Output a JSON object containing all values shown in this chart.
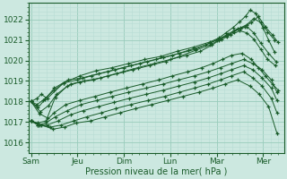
{
  "title": "",
  "xlabel": "Pression niveau de la mer( hPa )",
  "bg_color": "#cce8e0",
  "plot_bg_color": "#cce8e0",
  "grid_major_color": "#99ccbb",
  "grid_minor_color": "#b8ddd4",
  "line_color": "#1a5c2a",
  "ylim": [
    1015.5,
    1022.8
  ],
  "yticks": [
    1016,
    1017,
    1018,
    1019,
    1020,
    1021,
    1022
  ],
  "xtick_labels": [
    "Sam",
    "Jeu",
    "Dim",
    "Lun",
    "Mar",
    "Mer"
  ],
  "xtick_positions": [
    0,
    1,
    2,
    3,
    4,
    5
  ],
  "xlim": [
    -0.05,
    5.45
  ],
  "series": [
    {
      "x": [
        0.0,
        0.13,
        0.22,
        0.35,
        0.7,
        1.05,
        1.4,
        1.75,
        2.1,
        2.45,
        2.8,
        3.15,
        3.5,
        3.85,
        4.05,
        4.2,
        4.35,
        4.5,
        4.62,
        4.72,
        4.85,
        5.0,
        5.12,
        5.25
      ],
      "y": [
        1018.0,
        1018.15,
        1018.35,
        1018.15,
        1018.9,
        1019.25,
        1019.5,
        1019.65,
        1019.85,
        1020.05,
        1020.2,
        1020.45,
        1020.65,
        1020.9,
        1021.1,
        1021.35,
        1021.6,
        1021.9,
        1022.15,
        1022.45,
        1022.3,
        1021.6,
        1021.0,
        1020.4
      ]
    },
    {
      "x": [
        0.0,
        0.13,
        0.25,
        0.5,
        0.7,
        1.0,
        1.3,
        1.65,
        2.0,
        2.35,
        2.7,
        3.05,
        3.4,
        3.75,
        4.0,
        4.2,
        4.38,
        4.52,
        4.65,
        4.8,
        4.95,
        5.1,
        5.25
      ],
      "y": [
        1018.0,
        1017.85,
        1018.05,
        1018.55,
        1018.9,
        1019.05,
        1019.25,
        1019.45,
        1019.65,
        1019.85,
        1020.05,
        1020.25,
        1020.5,
        1020.75,
        1021.0,
        1021.2,
        1021.4,
        1021.6,
        1021.75,
        1022.05,
        1021.85,
        1021.4,
        1021.0
      ]
    },
    {
      "x": [
        0.0,
        0.15,
        0.3,
        0.5,
        0.8,
        1.1,
        1.45,
        1.8,
        2.15,
        2.5,
        2.85,
        3.2,
        3.55,
        3.85,
        4.05,
        4.25,
        4.45,
        4.6,
        4.75,
        4.9,
        5.05,
        5.2,
        5.32
      ],
      "y": [
        1018.0,
        1017.7,
        1018.1,
        1018.65,
        1019.05,
        1019.15,
        1019.35,
        1019.55,
        1019.75,
        1019.95,
        1020.15,
        1020.35,
        1020.55,
        1020.85,
        1021.05,
        1021.3,
        1021.55,
        1021.65,
        1021.85,
        1022.15,
        1021.65,
        1021.25,
        1020.9
      ]
    },
    {
      "x": [
        0.0,
        0.2,
        0.38,
        0.55,
        0.85,
        1.15,
        1.5,
        1.85,
        2.2,
        2.55,
        2.9,
        3.2,
        3.55,
        3.85,
        4.05,
        4.22,
        4.38,
        4.52,
        4.65,
        4.8,
        4.95,
        5.12,
        5.28
      ],
      "y": [
        1018.0,
        1017.5,
        1017.8,
        1018.35,
        1018.85,
        1019.0,
        1019.15,
        1019.35,
        1019.55,
        1019.75,
        1019.95,
        1020.2,
        1020.5,
        1020.75,
        1021.0,
        1021.15,
        1021.45,
        1021.55,
        1021.65,
        1021.35,
        1020.85,
        1020.35,
        1019.95
      ]
    },
    {
      "x": [
        0.0,
        0.18,
        0.35,
        0.52,
        0.78,
        1.05,
        1.35,
        1.65,
        1.98,
        2.3,
        2.65,
        3.0,
        3.35,
        3.65,
        3.9,
        4.1,
        4.3,
        4.5,
        4.65,
        4.8,
        4.95,
        5.1,
        5.27
      ],
      "y": [
        1018.0,
        1017.4,
        1017.2,
        1018.2,
        1018.75,
        1018.95,
        1019.05,
        1019.25,
        1019.45,
        1019.65,
        1019.85,
        1020.05,
        1020.25,
        1020.45,
        1020.75,
        1021.05,
        1021.25,
        1021.45,
        1021.35,
        1021.05,
        1020.55,
        1020.05,
        1019.75
      ]
    },
    {
      "x": [
        0.0,
        0.15,
        0.32,
        0.5,
        0.75,
        1.05,
        1.38,
        1.7,
        2.05,
        2.4,
        2.75,
        3.05,
        3.38,
        3.68,
        3.92,
        4.12,
        4.32,
        4.55,
        4.75,
        4.9,
        5.05,
        5.2,
        5.33
      ],
      "y": [
        1017.05,
        1016.95,
        1017.05,
        1017.45,
        1017.85,
        1018.05,
        1018.25,
        1018.45,
        1018.65,
        1018.85,
        1019.05,
        1019.25,
        1019.45,
        1019.65,
        1019.85,
        1020.05,
        1020.25,
        1020.35,
        1020.05,
        1019.65,
        1019.25,
        1018.85,
        1018.55
      ]
    },
    {
      "x": [
        0.0,
        0.15,
        0.32,
        0.52,
        0.78,
        1.08,
        1.42,
        1.75,
        2.1,
        2.48,
        2.85,
        3.18,
        3.52,
        3.82,
        4.08,
        4.32,
        4.58,
        4.78,
        4.98,
        5.18,
        5.3
      ],
      "y": [
        1017.05,
        1016.85,
        1016.95,
        1017.25,
        1017.55,
        1017.85,
        1018.05,
        1018.25,
        1018.45,
        1018.65,
        1018.85,
        1019.05,
        1019.25,
        1019.45,
        1019.65,
        1019.85,
        1020.05,
        1019.85,
        1019.55,
        1019.05,
        1018.45
      ]
    },
    {
      "x": [
        0.0,
        0.15,
        0.35,
        0.58,
        0.85,
        1.12,
        1.45,
        1.78,
        2.12,
        2.48,
        2.85,
        3.18,
        3.52,
        3.82,
        4.08,
        4.32,
        4.58,
        4.78,
        4.98,
        5.18,
        5.3
      ],
      "y": [
        1017.05,
        1016.85,
        1016.85,
        1017.05,
        1017.35,
        1017.55,
        1017.75,
        1017.95,
        1018.15,
        1018.35,
        1018.55,
        1018.75,
        1018.95,
        1019.15,
        1019.35,
        1019.55,
        1019.75,
        1019.55,
        1019.15,
        1018.65,
        1018.05
      ]
    },
    {
      "x": [
        0.0,
        0.18,
        0.42,
        0.65,
        0.92,
        1.2,
        1.52,
        1.82,
        2.15,
        2.52,
        2.88,
        3.2,
        3.52,
        3.82,
        4.08,
        4.32,
        4.58,
        4.78,
        4.98,
        5.18,
        5.3
      ],
      "y": [
        1017.05,
        1016.85,
        1016.75,
        1016.85,
        1017.05,
        1017.25,
        1017.45,
        1017.65,
        1017.85,
        1018.05,
        1018.25,
        1018.45,
        1018.65,
        1018.85,
        1019.05,
        1019.25,
        1019.45,
        1019.15,
        1018.75,
        1018.15,
        1017.45
      ]
    },
    {
      "x": [
        0.0,
        0.22,
        0.48,
        0.72,
        0.98,
        1.28,
        1.6,
        1.92,
        2.25,
        2.6,
        2.95,
        3.28,
        3.62,
        3.92,
        4.18,
        4.45,
        4.72,
        4.92,
        5.12,
        5.3
      ],
      "y": [
        1017.05,
        1016.85,
        1016.65,
        1016.75,
        1016.95,
        1017.05,
        1017.25,
        1017.45,
        1017.65,
        1017.85,
        1018.05,
        1018.25,
        1018.45,
        1018.65,
        1018.85,
        1019.05,
        1018.75,
        1018.35,
        1017.75,
        1016.45
      ]
    }
  ]
}
